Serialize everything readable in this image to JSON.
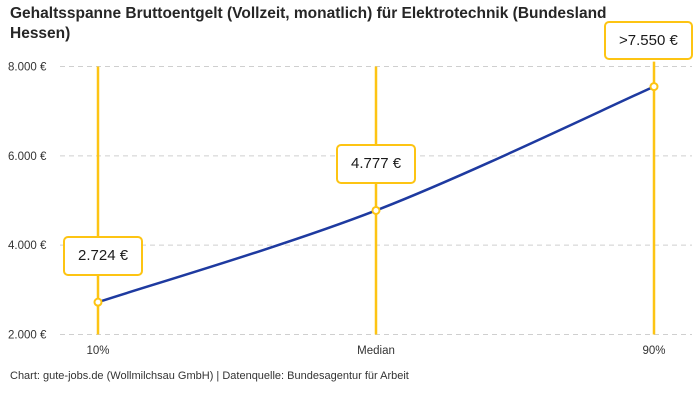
{
  "title": "Gehaltsspanne Bruttoentgelt (Vollzeit, monatlich) für Elektrotechnik (Bundesland Hessen)",
  "footer": "Chart: gute-jobs.de (Wollmilchsau GmbH) | Datenquelle: Bundesagentur für Arbeit",
  "chart_data": {
    "type": "line",
    "categories": [
      "10%",
      "Median",
      "90%"
    ],
    "values": [
      2724,
      4777,
      7550
    ],
    "point_labels": [
      "2.724 €",
      "4.777 €",
      ">7.550 €"
    ],
    "ylim": [
      2000,
      8000
    ],
    "yticks": [
      2000,
      4000,
      6000,
      8000
    ],
    "ytick_labels": [
      "2.000 €",
      "4.000 €",
      "6.000 €",
      "8.000 €"
    ],
    "grid": true,
    "legend": "none",
    "colors": {
      "line": "#1E3AA0",
      "marker": "#FDC413",
      "grid": "#cfcfcf",
      "label_border": "#FDC413",
      "axis_text": "#333333"
    }
  }
}
